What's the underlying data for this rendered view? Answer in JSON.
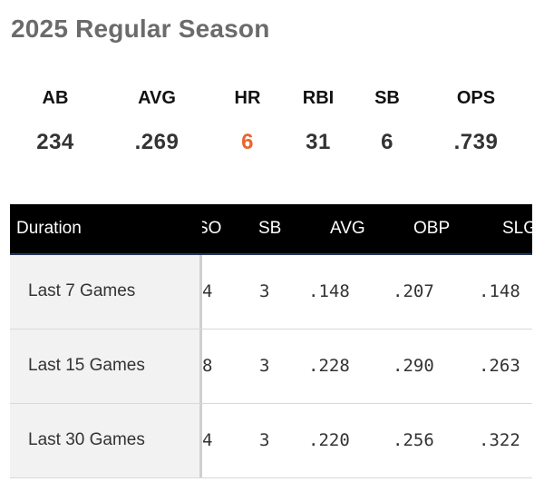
{
  "season_title": "2025 Regular Season",
  "summary": [
    {
      "label": "AB",
      "value": "234",
      "highlight": false
    },
    {
      "label": "AVG",
      "value": ".269",
      "highlight": false
    },
    {
      "label": "HR",
      "value": "6",
      "highlight": true
    },
    {
      "label": "RBI",
      "value": "31",
      "highlight": false
    },
    {
      "label": "SB",
      "value": "6",
      "highlight": false
    },
    {
      "label": "OPS",
      "value": ".739",
      "highlight": false
    }
  ],
  "table": {
    "headers": [
      "Duration",
      "SO",
      "SB",
      "AVG",
      "OBP",
      "SLG"
    ],
    "rows": [
      {
        "duration": "Last 7 Games",
        "cells": [
          "4",
          "3",
          ".148",
          ".207",
          ".148"
        ]
      },
      {
        "duration": "Last 15 Games",
        "cells": [
          "8",
          "3",
          ".228",
          ".290",
          ".263"
        ]
      },
      {
        "duration": "Last 30 Games",
        "cells": [
          "4",
          "3",
          ".220",
          ".256",
          ".322"
        ]
      }
    ]
  },
  "colors": {
    "highlight": "#e8662c",
    "header_bg": "#000000",
    "frozen_bg": "#f2f2f2"
  }
}
